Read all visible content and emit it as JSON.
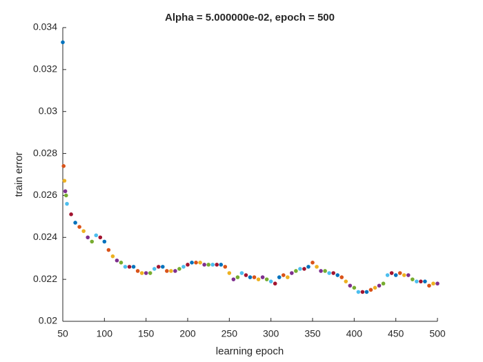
{
  "chart_data": {
    "type": "scatter",
    "title": "Alpha = 5.000000e-02, epoch = 500",
    "xlabel": "learning epoch",
    "ylabel": "train error",
    "x": [
      50,
      51,
      52,
      53,
      54,
      55,
      60,
      65,
      70,
      75,
      80,
      85,
      90,
      95,
      100,
      105,
      110,
      115,
      120,
      125,
      130,
      135,
      140,
      145,
      150,
      155,
      160,
      165,
      170,
      175,
      180,
      185,
      190,
      195,
      200,
      205,
      210,
      215,
      220,
      225,
      230,
      235,
      240,
      245,
      250,
      255,
      260,
      265,
      270,
      275,
      280,
      285,
      290,
      295,
      300,
      305,
      310,
      315,
      320,
      325,
      330,
      335,
      340,
      345,
      350,
      355,
      360,
      365,
      370,
      375,
      380,
      385,
      390,
      395,
      400,
      405,
      410,
      415,
      420,
      425,
      430,
      435,
      440,
      445,
      450,
      455,
      460,
      465,
      470,
      475,
      480,
      485,
      490,
      495,
      500
    ],
    "values": [
      0.0333,
      0.0274,
      0.0267,
      0.0262,
      0.026,
      0.0256,
      0.0251,
      0.0247,
      0.0245,
      0.0243,
      0.024,
      0.0238,
      0.0241,
      0.024,
      0.0238,
      0.0234,
      0.0231,
      0.0229,
      0.0228,
      0.0226,
      0.0226,
      0.0226,
      0.0224,
      0.0223,
      0.0223,
      0.0223,
      0.0225,
      0.0226,
      0.0226,
      0.0224,
      0.0224,
      0.0224,
      0.0225,
      0.0226,
      0.0227,
      0.0228,
      0.0228,
      0.0228,
      0.0227,
      0.0227,
      0.0227,
      0.0227,
      0.0227,
      0.0226,
      0.0223,
      0.022,
      0.0221,
      0.0223,
      0.0222,
      0.0221,
      0.0221,
      0.022,
      0.0221,
      0.022,
      0.0219,
      0.0218,
      0.0221,
      0.0222,
      0.0221,
      0.0223,
      0.0224,
      0.0225,
      0.0225,
      0.0226,
      0.0228,
      0.0226,
      0.0224,
      0.0224,
      0.0223,
      0.0223,
      0.0222,
      0.0221,
      0.0219,
      0.0217,
      0.0216,
      0.0214,
      0.0214,
      0.0214,
      0.0215,
      0.0216,
      0.0217,
      0.0218,
      0.0222,
      0.0223,
      0.0222,
      0.0223,
      0.0222,
      0.0222,
      0.022,
      0.0219,
      0.0219,
      0.0219,
      0.0217,
      0.0218,
      0.0218
    ],
    "colors": [
      "#0072BD",
      "#D95319",
      "#EDB120",
      "#7E2F8E",
      "#77AC30",
      "#4DBEEE",
      "#A2142F"
    ],
    "xlim": [
      50,
      500
    ],
    "xticks": [
      50,
      100,
      150,
      200,
      250,
      300,
      350,
      400,
      450,
      500
    ],
    "ylim": [
      0.02,
      0.034
    ],
    "yticks": [
      0.02,
      0.022,
      0.024,
      0.026,
      0.028,
      0.03,
      0.032,
      0.034
    ]
  }
}
